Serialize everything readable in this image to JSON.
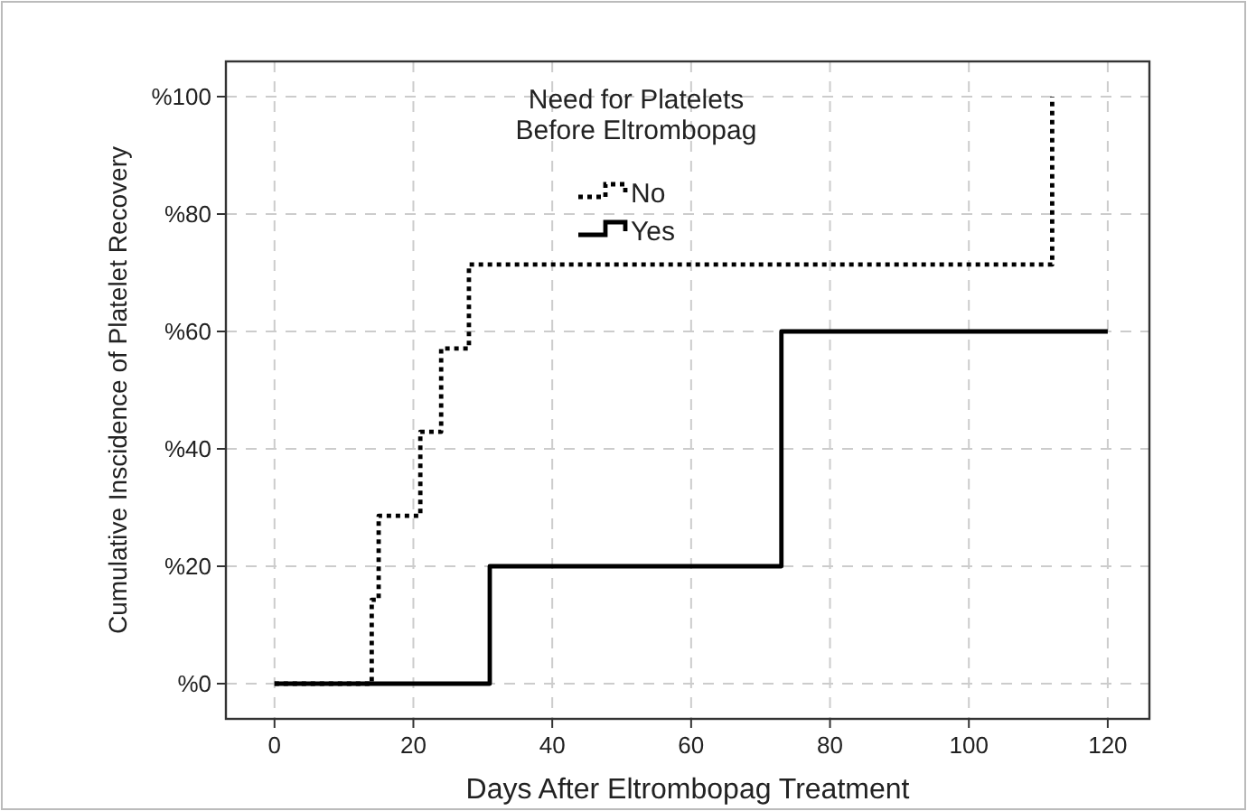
{
  "chart_data": {
    "type": "step",
    "xlabel": "Days After Eltrombopag Treatment",
    "ylabel": "Cumulative Inscidence of Platelet Recovery",
    "legend_title": "Need for Platelets\nBefore Eltrombopag",
    "legend": "top",
    "grid": true,
    "xlim": [
      -7,
      126
    ],
    "xticks": [
      0,
      20,
      40,
      60,
      80,
      100,
      120
    ],
    "ylim": [
      -6,
      106
    ],
    "yticks": [
      {
        "value": 0,
        "label": "%0"
      },
      {
        "value": 20,
        "label": "%20"
      },
      {
        "value": 40,
        "label": "%40"
      },
      {
        "value": 60,
        "label": "%60"
      },
      {
        "value": 80,
        "label": "%80"
      },
      {
        "value": 100,
        "label": "%100"
      }
    ],
    "series": [
      {
        "name": "No",
        "color": "#000000",
        "line_style": "dotted",
        "x": [
          0,
          14,
          15,
          21,
          24,
          28,
          112
        ],
        "values": [
          0,
          14.3,
          28.6,
          42.9,
          57.1,
          71.4,
          100
        ]
      },
      {
        "name": "Yes",
        "color": "#000000",
        "line_style": "solid",
        "x": [
          0,
          31,
          73,
          120
        ],
        "values": [
          0,
          20,
          60,
          60
        ]
      }
    ]
  }
}
